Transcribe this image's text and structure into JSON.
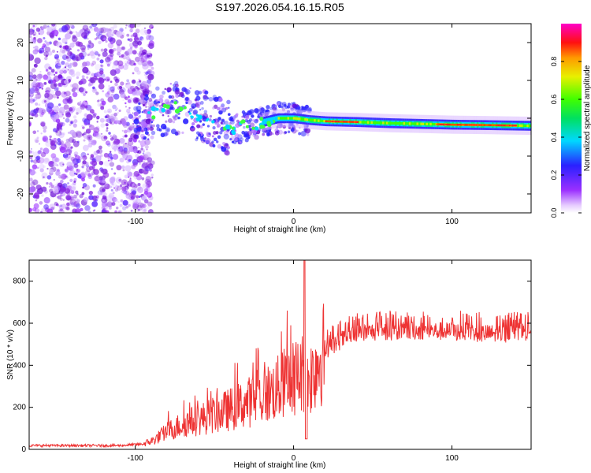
{
  "title": "S197.2026.054.16.15.R05",
  "colors": {
    "snr_line": "#ee3333",
    "axis": "#000000",
    "background": "#ffffff"
  },
  "chart_data": [
    {
      "type": "heatmap",
      "title": "S197.2026.054.16.15.R05",
      "xlabel": "Height of straight line (km)",
      "ylabel": "Frequency (Hz)",
      "xlim": [
        -167,
        150
      ],
      "ylim": [
        -25,
        25
      ],
      "xticks": [
        -100,
        0,
        100
      ],
      "yticks": [
        -20,
        -10,
        0,
        10,
        20
      ],
      "colorbar": {
        "label": "Normalized spectral amplitude",
        "range": [
          0,
          1
        ],
        "ticks": [
          "0.0",
          "0.2",
          "0.4",
          "0.6",
          "0.8"
        ],
        "colormap": "rainbow (purple-blue-cyan-green-yellow-red-magenta)"
      },
      "features": {
        "noise_region_x": [
          -167,
          -95
        ],
        "ridge_center_hz": [
          [
            -95,
            1
          ],
          [
            -85,
            2
          ],
          [
            -75,
            3
          ],
          [
            -65,
            2
          ],
          [
            -55,
            0
          ],
          [
            -45,
            -2
          ],
          [
            -38,
            -3
          ],
          [
            -30,
            -2
          ],
          [
            -20,
            -1
          ],
          [
            -10,
            0
          ],
          [
            0,
            0
          ],
          [
            10,
            -0.5
          ],
          [
            20,
            -0.8
          ],
          [
            40,
            -1
          ],
          [
            60,
            -1.3
          ],
          [
            80,
            -1.5
          ],
          [
            100,
            -1.7
          ],
          [
            120,
            -1.8
          ],
          [
            150,
            -2
          ]
        ]
      }
    },
    {
      "type": "line",
      "xlabel": "Height of straight line (km)",
      "ylabel": "SNR (10 * v/v)",
      "xlim": [
        -167,
        150
      ],
      "ylim": [
        0,
        900
      ],
      "xticks": [
        -100,
        0,
        100
      ],
      "yticks": [
        0,
        200,
        400,
        600,
        800
      ],
      "series_envelope": {
        "name": "SNR",
        "x": [
          -167,
          -140,
          -110,
          -95,
          -88,
          -80,
          -70,
          -60,
          -50,
          -40,
          -30,
          -20,
          -10,
          -5,
          0,
          5,
          8,
          10,
          15,
          20,
          30,
          40,
          50,
          60,
          80,
          100,
          110,
          120,
          130,
          140,
          150
        ],
        "y": [
          18,
          18,
          18,
          25,
          45,
          85,
          120,
          140,
          165,
          190,
          220,
          250,
          290,
          320,
          340,
          360,
          390,
          330,
          420,
          470,
          520,
          550,
          560,
          560,
          565,
          560,
          560,
          550,
          550,
          555,
          565
        ]
      },
      "annotations": [
        {
          "x": 7,
          "y": 900,
          "label": "spike"
        },
        {
          "x": 8,
          "y": 50,
          "label": "dip"
        }
      ]
    }
  ]
}
